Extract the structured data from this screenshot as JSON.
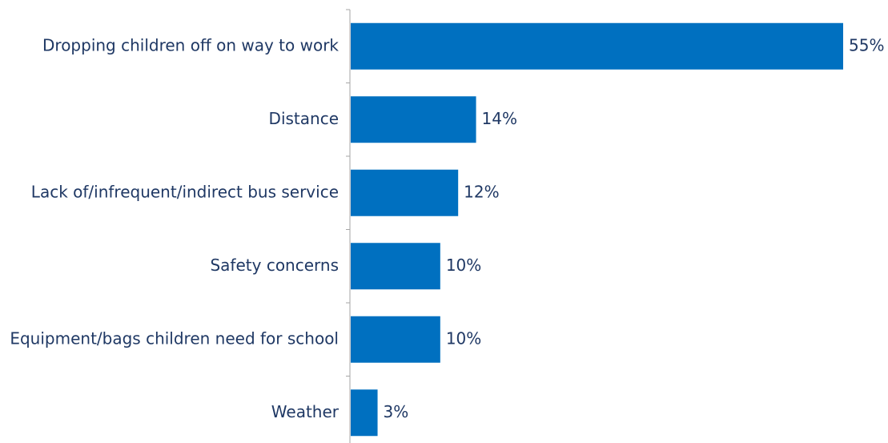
{
  "chart_data": {
    "type": "bar",
    "orientation": "horizontal",
    "categories": [
      "Dropping children off on way to work",
      "Distance",
      "Lack of/infrequent/indirect bus service",
      "Safety concerns",
      "Equipment/bags children need for school",
      "Weather"
    ],
    "values": [
      55,
      14,
      12,
      10,
      10,
      3
    ],
    "value_labels": [
      "55%",
      "14%",
      "12%",
      "10%",
      "10%",
      "3%"
    ],
    "unit": "%",
    "xlim": [
      0,
      55
    ],
    "grid": false,
    "legend": "none",
    "bar_color": "#0070c0",
    "text_color": "#1f3864",
    "axis_color": "#a6a6a6"
  }
}
